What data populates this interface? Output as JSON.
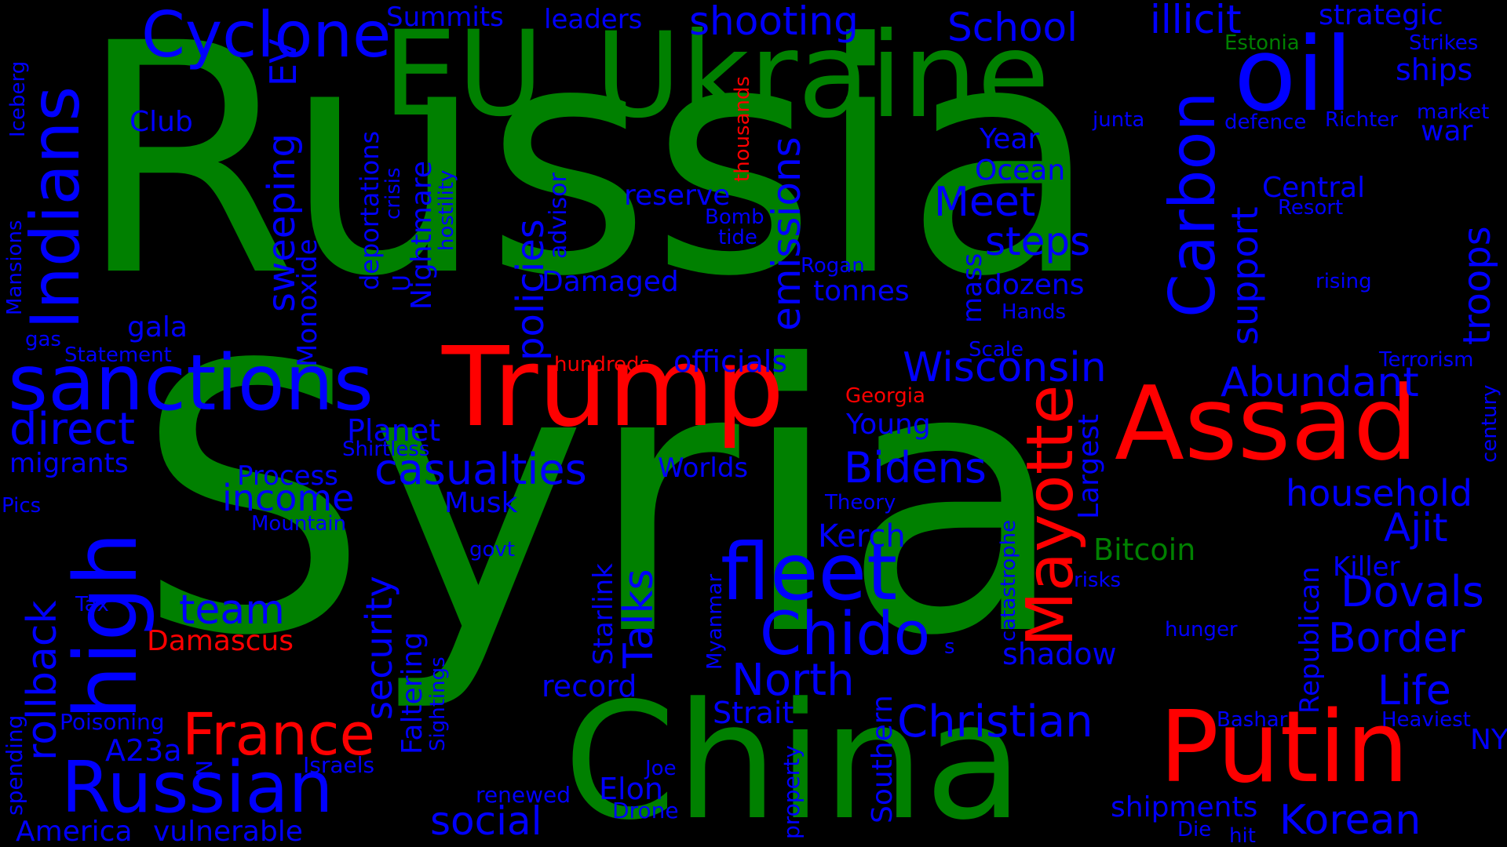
{
  "colors": {
    "background": "#000000",
    "green": "#008000",
    "red": "#ff0000",
    "blue": "#0000ff"
  },
  "words": [
    {
      "text": "Russia",
      "color": "green"
    },
    {
      "text": "Syria",
      "color": "green"
    },
    {
      "text": "EU",
      "color": "green"
    },
    {
      "text": "Ukraine",
      "color": "green"
    },
    {
      "text": "China",
      "color": "green"
    },
    {
      "text": "Estonia",
      "color": "green"
    },
    {
      "text": "Bitcoin",
      "color": "green"
    },
    {
      "text": "Trump",
      "color": "red"
    },
    {
      "text": "Assad",
      "color": "red"
    },
    {
      "text": "Putin",
      "color": "red"
    },
    {
      "text": "France",
      "color": "red"
    },
    {
      "text": "Damascus",
      "color": "red"
    },
    {
      "text": "Mayotte",
      "color": "red"
    },
    {
      "text": "hundreds",
      "color": "red"
    },
    {
      "text": "Georgia",
      "color": "red"
    },
    {
      "text": "thousands",
      "color": "red"
    },
    {
      "text": "Cyclone",
      "color": "blue"
    },
    {
      "text": "Summits",
      "color": "blue"
    },
    {
      "text": "leaders",
      "color": "blue"
    },
    {
      "text": "shooting",
      "color": "blue"
    },
    {
      "text": "School",
      "color": "blue"
    },
    {
      "text": "illicit",
      "color": "blue"
    },
    {
      "text": "strategic",
      "color": "blue"
    },
    {
      "text": "oil",
      "color": "blue"
    },
    {
      "text": "Strikes",
      "color": "blue"
    },
    {
      "text": "ships",
      "color": "blue"
    },
    {
      "text": "Iceberg",
      "color": "blue"
    },
    {
      "text": "EV",
      "color": "blue"
    },
    {
      "text": "Club",
      "color": "blue"
    },
    {
      "text": "Indians",
      "color": "blue"
    },
    {
      "text": "Carbon",
      "color": "blue"
    },
    {
      "text": "market",
      "color": "blue"
    },
    {
      "text": "war",
      "color": "blue"
    },
    {
      "text": "junta",
      "color": "blue"
    },
    {
      "text": "defence",
      "color": "blue"
    },
    {
      "text": "Richter",
      "color": "blue"
    },
    {
      "text": "Year",
      "color": "blue"
    },
    {
      "text": "Ocean",
      "color": "blue"
    },
    {
      "text": "Central",
      "color": "blue"
    },
    {
      "text": "Resort",
      "color": "blue"
    },
    {
      "text": "troops",
      "color": "blue"
    },
    {
      "text": "reserve",
      "color": "blue"
    },
    {
      "text": "Bomb",
      "color": "blue"
    },
    {
      "text": "tide",
      "color": "blue"
    },
    {
      "text": "Meet",
      "color": "blue"
    },
    {
      "text": "steps",
      "color": "blue"
    },
    {
      "text": "support",
      "color": "blue"
    },
    {
      "text": "emissions",
      "color": "blue"
    },
    {
      "text": "policies",
      "color": "blue"
    },
    {
      "text": "advisor",
      "color": "blue"
    },
    {
      "text": "deportations",
      "color": "blue"
    },
    {
      "text": "crisis",
      "color": "blue"
    },
    {
      "text": "Nightmare",
      "color": "blue"
    },
    {
      "text": "hostility",
      "color": "blue"
    },
    {
      "text": "sweeping",
      "color": "blue"
    },
    {
      "text": "Monoxide",
      "color": "blue"
    },
    {
      "text": "Mansions",
      "color": "blue"
    },
    {
      "text": "gas",
      "color": "blue"
    },
    {
      "text": "gala",
      "color": "blue"
    },
    {
      "text": "Statement",
      "color": "blue"
    },
    {
      "text": "Damaged",
      "color": "blue"
    },
    {
      "text": "Rogan",
      "color": "blue"
    },
    {
      "text": "tonnes",
      "color": "blue"
    },
    {
      "text": "dozens",
      "color": "blue"
    },
    {
      "text": "mass",
      "color": "blue"
    },
    {
      "text": "Hands",
      "color": "blue"
    },
    {
      "text": "rising",
      "color": "blue"
    },
    {
      "text": "Scale",
      "color": "blue"
    },
    {
      "text": "Terrorism",
      "color": "blue"
    },
    {
      "text": "century",
      "color": "blue"
    },
    {
      "text": "sanctions",
      "color": "blue"
    },
    {
      "text": "officials",
      "color": "blue"
    },
    {
      "text": "Wisconsin",
      "color": "blue"
    },
    {
      "text": "Abundant",
      "color": "blue"
    },
    {
      "text": "direct",
      "color": "blue"
    },
    {
      "text": "Planet",
      "color": "blue"
    },
    {
      "text": "Shirtless",
      "color": "blue"
    },
    {
      "text": "migrants",
      "color": "blue"
    },
    {
      "text": "Young",
      "color": "blue"
    },
    {
      "text": "Largest",
      "color": "blue"
    },
    {
      "text": "casualties",
      "color": "blue"
    },
    {
      "text": "Bidens",
      "color": "blue"
    },
    {
      "text": "Process",
      "color": "blue"
    },
    {
      "text": "Worlds",
      "color": "blue"
    },
    {
      "text": "income",
      "color": "blue"
    },
    {
      "text": "household",
      "color": "blue"
    },
    {
      "text": "Pics",
      "color": "blue"
    },
    {
      "text": "high",
      "color": "blue"
    },
    {
      "text": "Musk",
      "color": "blue"
    },
    {
      "text": "Theory",
      "color": "blue"
    },
    {
      "text": "Mountain",
      "color": "blue"
    },
    {
      "text": "Ajit",
      "color": "blue"
    },
    {
      "text": "Kerch",
      "color": "blue"
    },
    {
      "text": "catastrophe",
      "color": "blue"
    },
    {
      "text": "Republican",
      "color": "blue"
    },
    {
      "text": "govt",
      "color": "blue"
    },
    {
      "text": "Killer",
      "color": "blue"
    },
    {
      "text": "rollback",
      "color": "blue"
    },
    {
      "text": "fleet",
      "color": "blue"
    },
    {
      "text": "risks",
      "color": "blue"
    },
    {
      "text": "Dovals",
      "color": "blue"
    },
    {
      "text": "Tax",
      "color": "blue"
    },
    {
      "text": "team",
      "color": "blue"
    },
    {
      "text": "Talks",
      "color": "blue"
    },
    {
      "text": "Starlink",
      "color": "blue"
    },
    {
      "text": "Chido",
      "color": "blue"
    },
    {
      "text": "hunger",
      "color": "blue"
    },
    {
      "text": "Border",
      "color": "blue"
    },
    {
      "text": "security",
      "color": "blue"
    },
    {
      "text": "Faltering",
      "color": "blue"
    },
    {
      "text": "Sightings",
      "color": "blue"
    },
    {
      "text": "Myanmar",
      "color": "blue"
    },
    {
      "text": "s",
      "color": "blue"
    },
    {
      "text": "shadow",
      "color": "blue"
    },
    {
      "text": "North",
      "color": "blue"
    },
    {
      "text": "record",
      "color": "blue"
    },
    {
      "text": "Life",
      "color": "blue"
    },
    {
      "text": "Strait",
      "color": "blue"
    },
    {
      "text": "Christian",
      "color": "blue"
    },
    {
      "text": "Southern",
      "color": "blue"
    },
    {
      "text": "Poisoning",
      "color": "blue"
    },
    {
      "text": "Bashar",
      "color": "blue"
    },
    {
      "text": "Heaviest",
      "color": "blue"
    },
    {
      "text": "A23a",
      "color": "blue"
    },
    {
      "text": "N",
      "color": "blue"
    },
    {
      "text": "spending",
      "color": "blue"
    },
    {
      "text": "NY",
      "color": "blue"
    },
    {
      "text": "Israels",
      "color": "blue"
    },
    {
      "text": "Joe",
      "color": "blue"
    },
    {
      "text": "property",
      "color": "blue"
    },
    {
      "text": "Russian",
      "color": "blue"
    },
    {
      "text": "renewed",
      "color": "blue"
    },
    {
      "text": "Elon",
      "color": "blue"
    },
    {
      "text": "Drone",
      "color": "blue"
    },
    {
      "text": "shipments",
      "color": "blue"
    },
    {
      "text": "social",
      "color": "blue"
    },
    {
      "text": "Korean",
      "color": "blue"
    },
    {
      "text": "Die",
      "color": "blue"
    },
    {
      "text": "hit",
      "color": "blue"
    },
    {
      "text": "America",
      "color": "blue"
    },
    {
      "text": "vulnerable",
      "color": "blue"
    },
    {
      "text": "U",
      "color": "blue"
    }
  ]
}
